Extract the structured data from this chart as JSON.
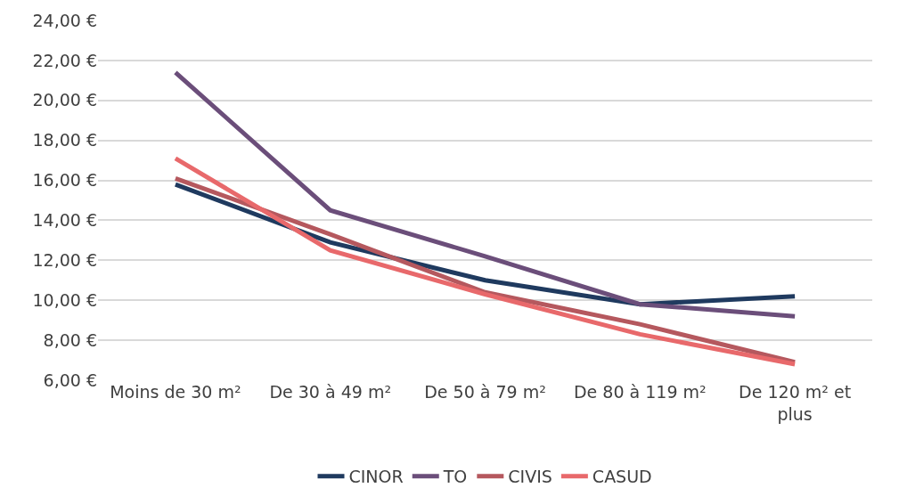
{
  "chart_data": {
    "type": "line",
    "categories": [
      "Moins de 30 m²",
      "De 30 à 49 m²",
      "De 50 à 79 m²",
      "De 80 à 119 m²",
      "De 120 m² et plus"
    ],
    "series": [
      {
        "name": "CINOR",
        "color": "#1f3a5f",
        "values": [
          15.8,
          12.9,
          11.0,
          9.8,
          10.2
        ]
      },
      {
        "name": "TO",
        "color": "#6b4e7a",
        "values": [
          21.4,
          14.5,
          12.2,
          9.8,
          9.2
        ]
      },
      {
        "name": "CIVIS",
        "color": "#b5585e",
        "values": [
          16.1,
          13.3,
          10.4,
          8.8,
          6.9
        ]
      },
      {
        "name": "CASUD",
        "color": "#e8696b",
        "values": [
          17.1,
          12.5,
          10.3,
          8.3,
          6.8
        ]
      }
    ],
    "ylim": [
      6,
      24
    ],
    "yticks": [
      {
        "value": 6,
        "label": "6,00 €"
      },
      {
        "value": 8,
        "label": "8,00 €"
      },
      {
        "value": 10,
        "label": "10,00 €"
      },
      {
        "value": 12,
        "label": "12,00 €"
      },
      {
        "value": 14,
        "label": "14,00 €"
      },
      {
        "value": 16,
        "label": "16,00 €"
      },
      {
        "value": 18,
        "label": "18,00 €"
      },
      {
        "value": 20,
        "label": "20,00 €"
      },
      {
        "value": 22,
        "label": "22,00 €"
      },
      {
        "value": 24,
        "label": "24,00 €"
      }
    ],
    "grid": "y",
    "legend": "bottom",
    "marker": "none",
    "line_style": "solid"
  }
}
